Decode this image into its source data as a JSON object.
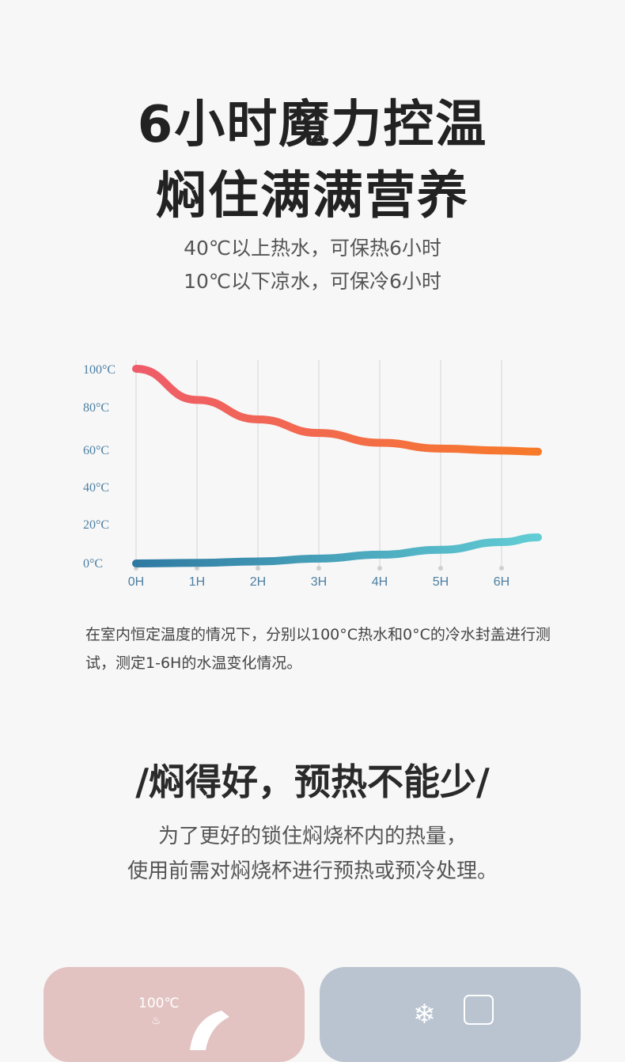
{
  "header": {
    "title_line1": "6小时魔力控温",
    "title_line2": "焖住满满营养",
    "subtitle_line1": "40℃以上热水，可保热6小时",
    "subtitle_line2": "10℃以下凉水，可保冷6小时"
  },
  "chart_data": {
    "type": "line",
    "x": [
      "0H",
      "1H",
      "2H",
      "3H",
      "4H",
      "5H",
      "6H"
    ],
    "y_ticks": [
      "100°C",
      "80°C",
      "60°C",
      "40°C",
      "20°C",
      "0°C"
    ],
    "ylim": [
      0,
      100
    ],
    "series": [
      {
        "color_start": "#ee5c6a",
        "color_end": "#f77a2a",
        "values": [
          100,
          84,
          74,
          67,
          62,
          59,
          58
        ]
      },
      {
        "color_start": "#2f7aa2",
        "color_end": "#62cdd4",
        "values": [
          0,
          0.3,
          1,
          2.5,
          4.5,
          7,
          11
        ]
      }
    ],
    "grid": "vertical"
  },
  "note": "在室内恒定温度的情况下，分别以100°C热水和0°C的冷水封盖进行测试，测定1-6H的水温变化情况。",
  "section2": {
    "heading": "/焖得好，预热不能少/",
    "line1": "为了更好的锁住焖烧杯内的热量，",
    "line2": "使用前需对焖烧杯进行预热或预冷处理。"
  },
  "cards": {
    "hot_label": "100℃",
    "hot_icon": "steam-icon",
    "cold_icon": "snowflake-icon"
  }
}
